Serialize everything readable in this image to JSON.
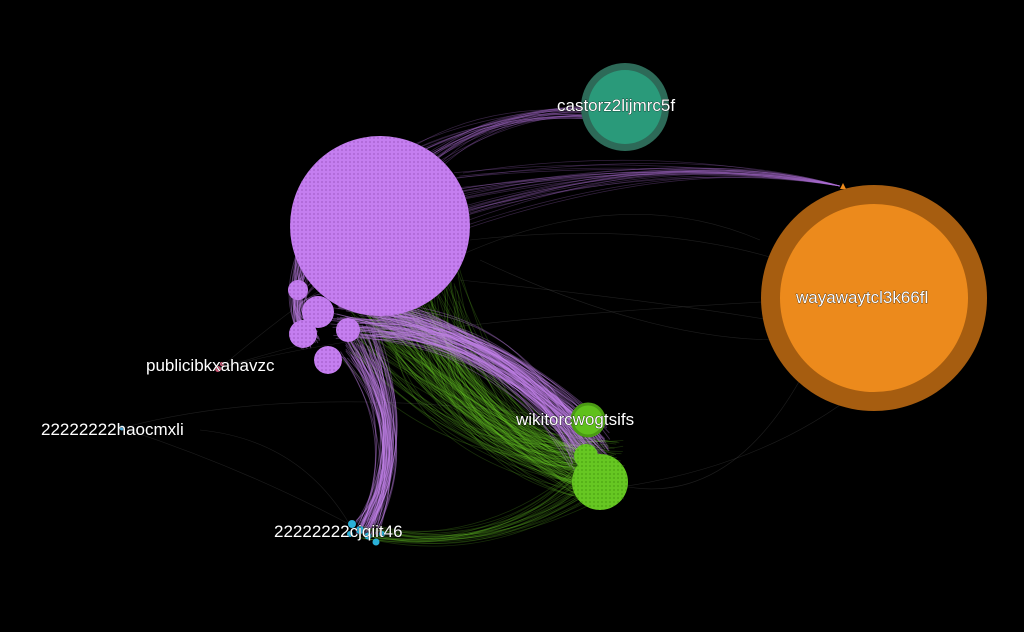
{
  "graph": {
    "background": "#000000",
    "nodes": [
      {
        "id": "castorz2lijmrc5f",
        "label": "castorz2lijmrc5f",
        "color": "#2a9a7a",
        "ring": "#2d6a58"
      },
      {
        "id": "wayawaytcl3k66fl",
        "label": "wayawaytcl3k66fl",
        "color": "#ec8a1c",
        "ring": "#a65d10"
      },
      {
        "id": "publicibkxahavzc",
        "label": "publicibkxahavzc",
        "color": "#d05a7a"
      },
      {
        "id": "22222222haocmxli",
        "label": "22222222haocmxli",
        "color": "#4aa8d8"
      },
      {
        "id": "22222222cjqiit46",
        "label": "22222222cjqiit46",
        "color": "#2ab0d8"
      },
      {
        "id": "wikitorcwogtsifs",
        "label": "wikitorcwogtsifs",
        "color": "#66cc22"
      },
      {
        "id": "purple-cluster",
        "label": "",
        "color": "#c57ef0"
      }
    ]
  }
}
